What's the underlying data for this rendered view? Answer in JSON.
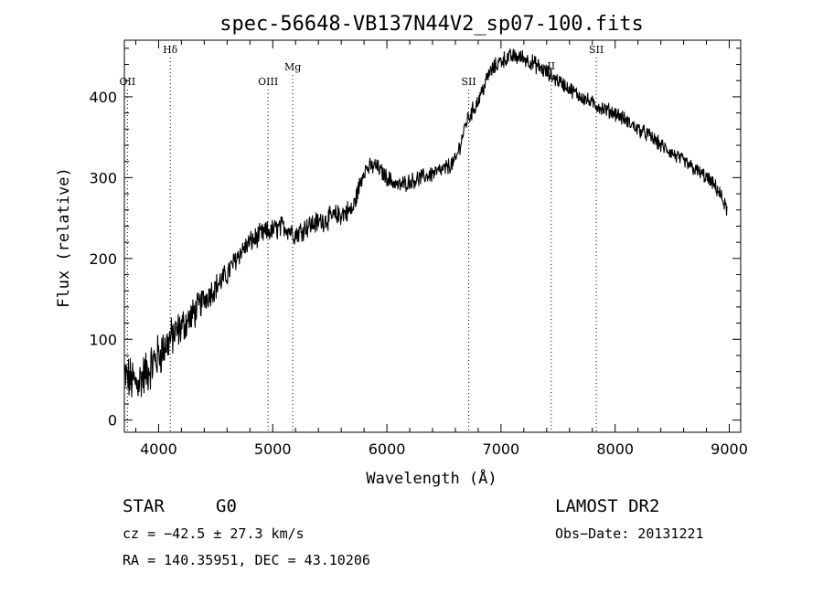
{
  "chart_data": {
    "type": "line",
    "title": "spec-56648-VB137N44V2_sp07-100.fits",
    "xlabel": "Wavelength (Å)",
    "ylabel": "Flux (relative)",
    "xlim": [
      3700,
      9100
    ],
    "ylim": [
      -15,
      470
    ],
    "xticks": [
      4000,
      5000,
      6000,
      7000,
      8000,
      9000
    ],
    "yticks": [
      0,
      100,
      200,
      300,
      400
    ],
    "lines": [
      {
        "label": "OII",
        "wavelength": 3727
      },
      {
        "label": "Hδ",
        "wavelength": 4102
      },
      {
        "label": "OIII",
        "wavelength": 4959
      },
      {
        "label": "Mg",
        "wavelength": 5175
      },
      {
        "label": "SII",
        "wavelength": 6717
      },
      {
        "label": "II",
        "wavelength": 7440
      },
      {
        "label": "SII",
        "wavelength": 7835
      }
    ],
    "series": [
      {
        "x": [
          3700,
          3800,
          3900,
          4000,
          4100,
          4200,
          4300,
          4400,
          4500,
          4600,
          4700,
          4800,
          4900,
          5000,
          5100,
          5200,
          5300,
          5400,
          5500,
          5600,
          5700,
          5800,
          5900,
          6000,
          6100,
          6200,
          6300,
          6400,
          6500,
          6600,
          6700,
          6800,
          6900,
          7000,
          7100,
          7200,
          7300,
          7400,
          7500,
          7600,
          7700,
          7800,
          7900,
          8000,
          8100,
          8200,
          8300,
          8400,
          8500,
          8600,
          8700,
          8800,
          8900,
          8980
        ],
        "y": [
          55,
          45,
          60,
          80,
          100,
          115,
          130,
          150,
          165,
          180,
          205,
          220,
          230,
          235,
          240,
          230,
          240,
          245,
          250,
          255,
          260,
          310,
          315,
          300,
          290,
          295,
          300,
          305,
          310,
          320,
          370,
          395,
          430,
          445,
          450,
          448,
          440,
          430,
          420,
          410,
          400,
          392,
          385,
          380,
          370,
          360,
          352,
          340,
          330,
          320,
          310,
          300,
          285,
          260
        ],
        "noise": [
          25,
          25,
          25,
          25,
          22,
          20,
          18,
          15,
          14,
          13,
          12,
          12,
          12,
          12,
          12,
          12,
          12,
          12,
          12,
          12,
          12,
          10,
          9,
          9,
          9,
          9,
          9,
          9,
          9,
          9,
          9,
          9,
          9,
          9,
          9,
          9,
          9,
          9,
          8,
          8,
          8,
          8,
          8,
          8,
          8,
          8,
          8,
          8,
          8,
          8,
          8,
          8,
          8,
          8
        ]
      }
    ]
  },
  "info": {
    "class_label": "STAR",
    "subclass_label": "G0",
    "survey": "LAMOST DR2",
    "cz": "cz = −42.5 ± 27.3 km/s",
    "obs_date": "Obs−Date: 20131221",
    "coords": "RA = 140.35951, DEC =  43.10206"
  }
}
